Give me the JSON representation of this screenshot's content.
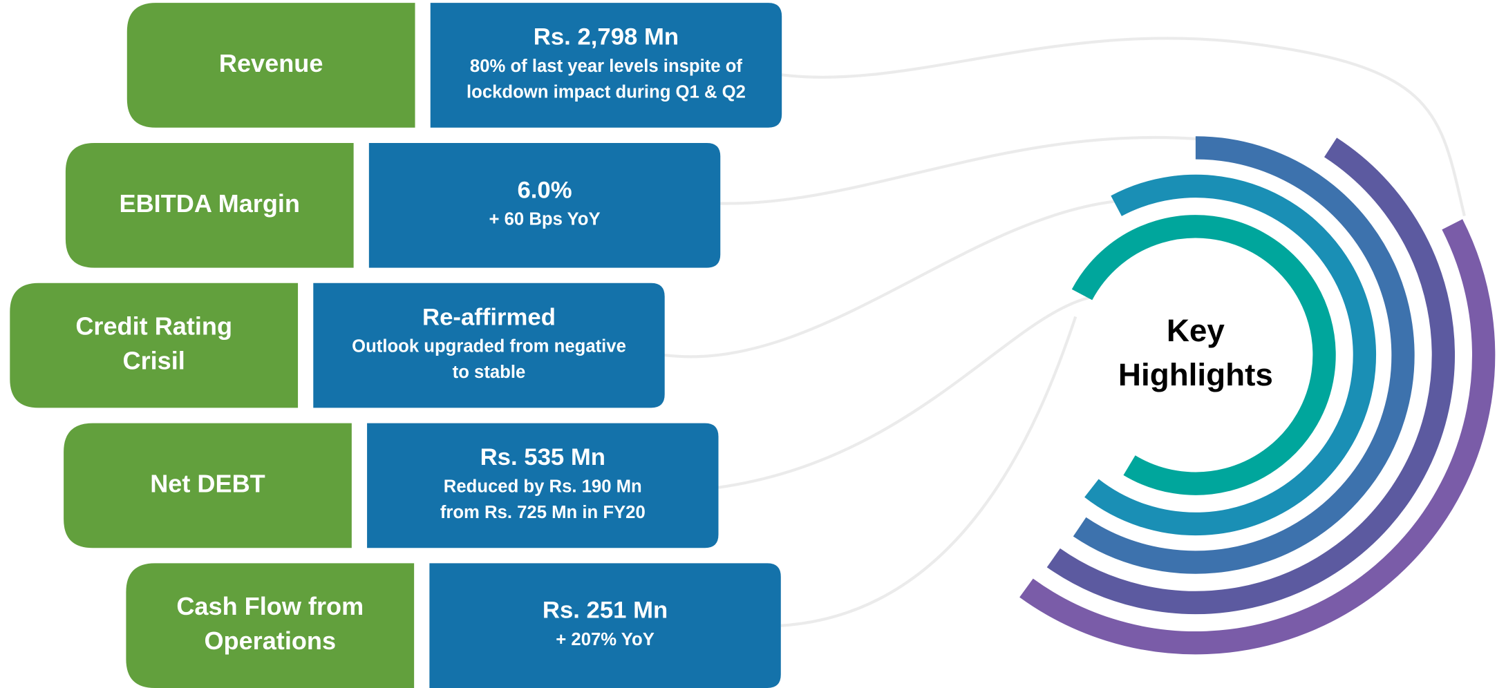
{
  "center_title": [
    "Key",
    "Highlights"
  ],
  "items": [
    {
      "label": [
        "Revenue"
      ],
      "value": "Rs. 2,798 Mn",
      "detail": [
        "80% of last year levels inspite of",
        "lockdown impact during Q1 & Q2"
      ]
    },
    {
      "label": [
        "EBITDA Margin"
      ],
      "value": "6.0%",
      "detail": [
        "+ 60 Bps YoY"
      ]
    },
    {
      "label": [
        "Credit Rating",
        "Crisil"
      ],
      "value": "Re-affirmed",
      "detail": [
        "Outlook upgraded from negative",
        "to stable"
      ]
    },
    {
      "label": [
        "Net DEBT"
      ],
      "value": "Rs. 535 Mn",
      "detail": [
        "Reduced by Rs. 190 Mn",
        "from Rs. 725 Mn in FY20"
      ]
    },
    {
      "label": [
        "Cash Flow from",
        "Operations"
      ],
      "value": "Rs. 251 Mn",
      "detail": [
        "+ 207% YoY"
      ]
    }
  ]
}
